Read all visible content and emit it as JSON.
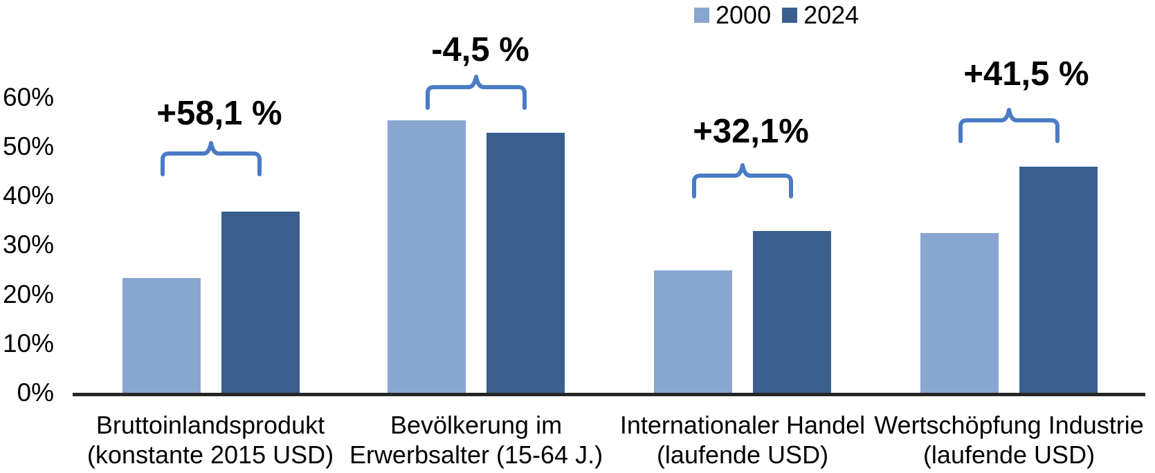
{
  "chart_data": {
    "type": "bar",
    "title": "",
    "xlabel": "",
    "ylabel": "",
    "legend_position": "top-right",
    "grid": false,
    "y_axis": {
      "min": 0,
      "max": 60,
      "unit": "%",
      "ticks": [
        "0%",
        "10%",
        "20%",
        "30%",
        "40%",
        "50%",
        "60%"
      ]
    },
    "categories": [
      [
        "Bruttoinlandsprodukt",
        "(konstante 2015 USD)"
      ],
      [
        "Bevölkerung im",
        "Erwerbsalter (15-64 J.)"
      ],
      [
        "Internationaler Handel",
        "(laufende USD)"
      ],
      [
        "Wertschöpfung Industrie",
        "(laufende USD)"
      ]
    ],
    "series": [
      {
        "name": "2000",
        "color": "#89A6D0",
        "values": [
          23.3,
          55.3,
          24.9,
          32.4
        ]
      },
      {
        "name": "2024",
        "color": "#3A5F8E",
        "values": [
          36.8,
          52.8,
          32.9,
          45.9
        ]
      }
    ],
    "annotations": [
      {
        "label": "+58,1 %"
      },
      {
        "label": "-4,5 %"
      },
      {
        "label": "+32,1%"
      },
      {
        "label": "+41,5 %"
      }
    ],
    "colors": {
      "brace": "#4A7BC4",
      "axis": "#262626",
      "text": "#000000"
    }
  }
}
